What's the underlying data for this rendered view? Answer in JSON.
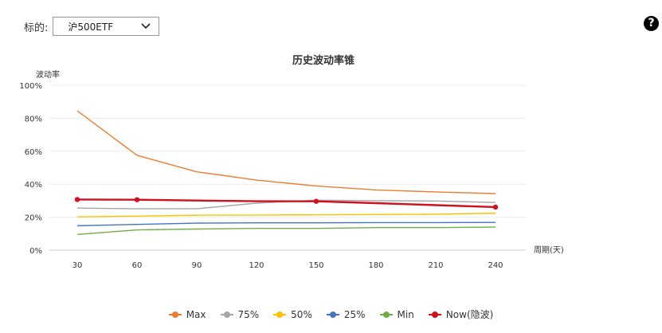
{
  "selector": {
    "label": "标的:",
    "value": "沪500ETF",
    "icon": "chevron-down-icon"
  },
  "help": {
    "icon": "question-circle-icon",
    "glyph": "?"
  },
  "chart_data": {
    "type": "line",
    "title": "历史波动率锥",
    "ylabel": "波动率",
    "xlabel": "周期(天)",
    "x": [
      30,
      60,
      90,
      120,
      150,
      180,
      210,
      240
    ],
    "ylim": [
      0,
      100
    ],
    "yticks": [
      "0%",
      "20%",
      "40%",
      "60%",
      "80%",
      "100%"
    ],
    "grid": true,
    "legend_position": "bottom",
    "series": [
      {
        "name": "Max",
        "color": "#ed7d31",
        "values": [
          84.5,
          57.5,
          47.5,
          42.5,
          38.9,
          36.5,
          35.3,
          34.3
        ]
      },
      {
        "name": "75%",
        "color": "#a5a5a5",
        "values": [
          25.5,
          25.1,
          25.1,
          28.5,
          30.3,
          30.0,
          29.8,
          28.9
        ]
      },
      {
        "name": "50%",
        "color": "#ffc000",
        "values": [
          20.2,
          20.6,
          21.2,
          21.3,
          21.4,
          21.6,
          21.8,
          22.4
        ]
      },
      {
        "name": "25%",
        "color": "#4472c4",
        "values": [
          14.8,
          15.6,
          16.4,
          16.6,
          16.6,
          16.7,
          16.7,
          16.8
        ]
      },
      {
        "name": "Min",
        "color": "#70ad47",
        "values": [
          9.5,
          12.3,
          12.8,
          13.2,
          13.2,
          13.7,
          13.7,
          14.0
        ]
      },
      {
        "name": "Now(隐波)",
        "color": "#d0101c",
        "values": [
          30.7,
          30.6,
          30.1,
          29.7,
          29.6,
          28.5,
          27.3,
          26.1
        ]
      }
    ]
  }
}
